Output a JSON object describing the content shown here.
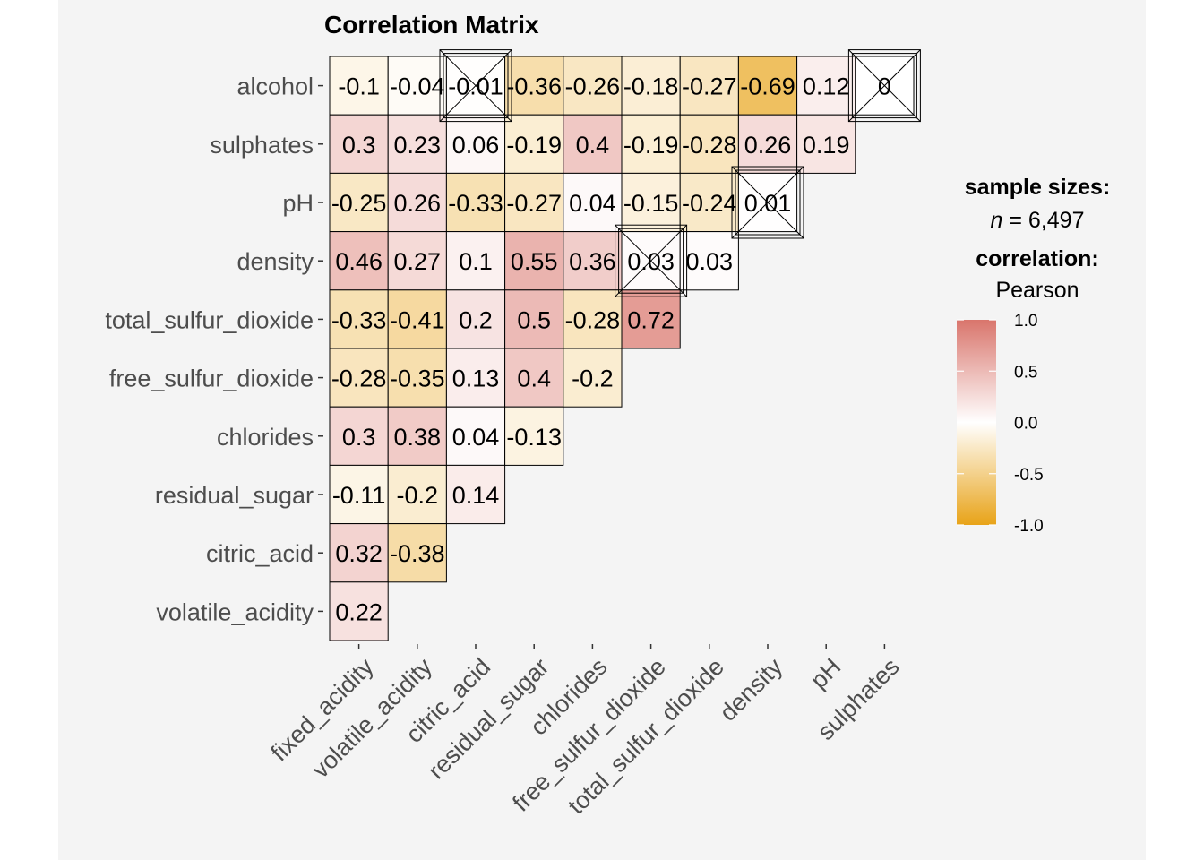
{
  "chart_data": {
    "type": "heatmap",
    "title": "Correlation Matrix",
    "x_categories": [
      "fixed_acidity",
      "volatile_acidity",
      "citric_acid",
      "residual_sugar",
      "chlorides",
      "free_sulfur_dioxide",
      "total_sulfur_dioxide",
      "density",
      "pH",
      "sulphates"
    ],
    "y_categories": [
      "alcohol",
      "sulphates",
      "pH",
      "density",
      "total_sulfur_dioxide",
      "free_sulfur_dioxide",
      "chlorides",
      "residual_sugar",
      "citric_acid",
      "volatile_acidity"
    ],
    "matrix": [
      [
        -0.1,
        -0.04,
        -0.01,
        -0.36,
        -0.26,
        -0.18,
        -0.27,
        -0.69,
        0.12,
        0
      ],
      [
        0.3,
        0.23,
        0.06,
        -0.19,
        0.4,
        -0.19,
        -0.28,
        0.26,
        0.19
      ],
      [
        -0.25,
        0.26,
        -0.33,
        -0.27,
        0.04,
        -0.15,
        -0.24,
        0.01
      ],
      [
        0.46,
        0.27,
        0.1,
        0.55,
        0.36,
        0.03,
        0.03
      ],
      [
        -0.33,
        -0.41,
        0.2,
        0.5,
        -0.28,
        0.72
      ],
      [
        -0.28,
        -0.35,
        0.13,
        0.4,
        -0.2
      ],
      [
        0.3,
        0.38,
        0.04,
        -0.13
      ],
      [
        -0.11,
        -0.2,
        0.14
      ],
      [
        0.32,
        -0.38
      ],
      [
        0.22
      ]
    ],
    "crossed_out": [
      [
        0,
        2
      ],
      [
        0,
        9
      ],
      [
        2,
        7
      ],
      [
        3,
        5
      ]
    ],
    "color_scale": {
      "low": "#e8a318",
      "mid": "#ffffff",
      "high": "#d9756c",
      "limits": [
        -1,
        1
      ]
    },
    "grid": false,
    "legend_placement": "right"
  },
  "legend": {
    "sample_title": "sample sizes:",
    "n_label": "n",
    "n_value": " = 6,497",
    "corr_title": "correlation:",
    "corr_method": "Pearson",
    "ticks": [
      "1.0",
      "0.5",
      "0.0",
      "-0.5",
      "-1.0"
    ]
  }
}
